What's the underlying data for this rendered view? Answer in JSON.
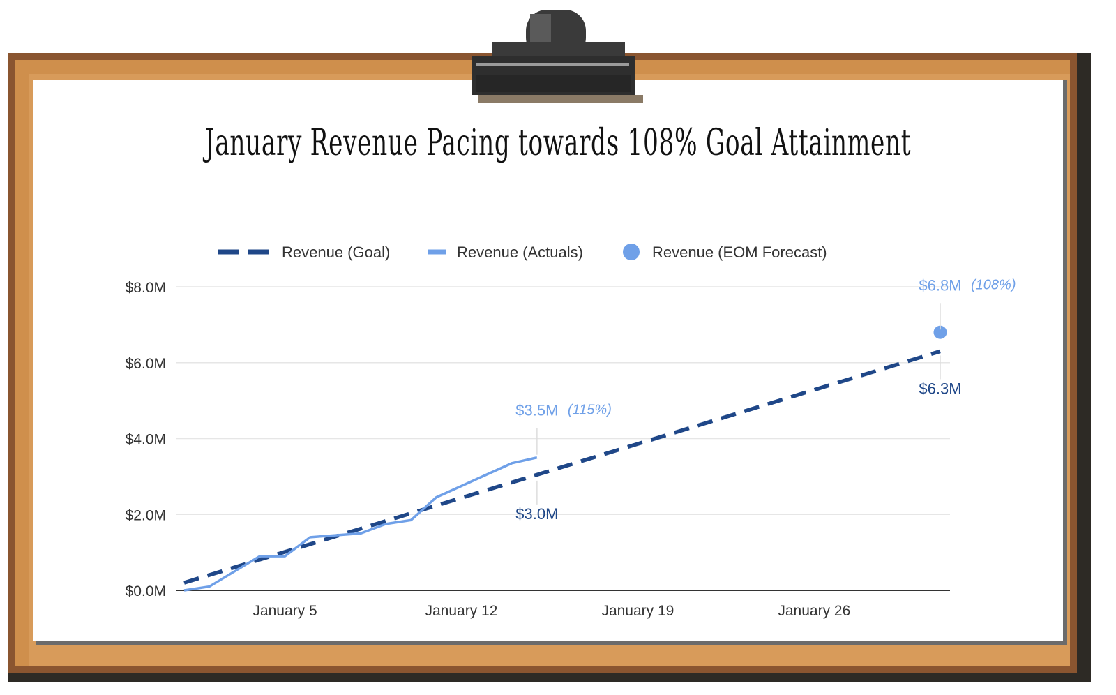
{
  "title": "January Revenue Pacing towards 108% Goal Attainment",
  "colors": {
    "goal": "#1f4788",
    "actuals": "#6fa0e8",
    "forecast": "#6fa0e8"
  },
  "chart_data": {
    "type": "line",
    "title": "January Revenue Pacing towards 108% Goal Attainment",
    "legend": {
      "position": "top",
      "items": [
        "Revenue (Goal)",
        "Revenue (Actuals)",
        "Revenue (EOM Forecast)"
      ]
    },
    "x_axis": {
      "type": "date",
      "range": [
        "2024-01-01",
        "2024-01-31"
      ],
      "ticks": [
        {
          "date": "2024-01-05",
          "label": "January 5"
        },
        {
          "date": "2024-01-12",
          "label": "January 12"
        },
        {
          "date": "2024-01-19",
          "label": "January 19"
        },
        {
          "date": "2024-01-26",
          "label": "January 26"
        }
      ]
    },
    "y_axis": {
      "range": [
        0,
        8
      ],
      "unit": "$M",
      "ticks": [
        {
          "value": 0,
          "label": "$0.0M"
        },
        {
          "value": 2,
          "label": "$2.0M"
        },
        {
          "value": 4,
          "label": "$4.0M"
        },
        {
          "value": 6,
          "label": "$6.0M"
        },
        {
          "value": 8,
          "label": "$8.0M"
        }
      ]
    },
    "grid": "horizontal",
    "series": [
      {
        "name": "Revenue (Goal)",
        "style": "dashed",
        "points": [
          [
            "2024-01-01",
            0.2
          ],
          [
            "2024-01-31",
            6.3
          ]
        ]
      },
      {
        "name": "Revenue (Actuals)",
        "style": "solid",
        "points": [
          [
            "2024-01-01",
            0.0
          ],
          [
            "2024-01-02",
            0.1
          ],
          [
            "2024-01-03",
            0.5
          ],
          [
            "2024-01-04",
            0.9
          ],
          [
            "2024-01-05",
            0.9
          ],
          [
            "2024-01-06",
            1.4
          ],
          [
            "2024-01-07",
            1.45
          ],
          [
            "2024-01-08",
            1.5
          ],
          [
            "2024-01-09",
            1.75
          ],
          [
            "2024-01-10",
            1.85
          ],
          [
            "2024-01-11",
            2.45
          ],
          [
            "2024-01-12",
            2.75
          ],
          [
            "2024-01-13",
            3.05
          ],
          [
            "2024-01-14",
            3.35
          ],
          [
            "2024-01-15",
            3.5
          ]
        ]
      },
      {
        "name": "Revenue (EOM Forecast)",
        "style": "point",
        "points": [
          [
            "2024-01-31",
            6.8
          ]
        ]
      }
    ],
    "annotations": [
      {
        "date": "2024-01-15",
        "value": 3.5,
        "label": "$3.5M",
        "pct": "(115%)",
        "series": "actuals",
        "position": "above"
      },
      {
        "date": "2024-01-15",
        "value": 3.0,
        "label": "$3.0M",
        "series": "goal",
        "position": "below"
      },
      {
        "date": "2024-01-31",
        "value": 6.8,
        "label": "$6.8M",
        "pct": "(108%)",
        "series": "forecast",
        "position": "above"
      },
      {
        "date": "2024-01-31",
        "value": 6.3,
        "label": "$6.3M",
        "series": "goal",
        "position": "below"
      }
    ]
  }
}
